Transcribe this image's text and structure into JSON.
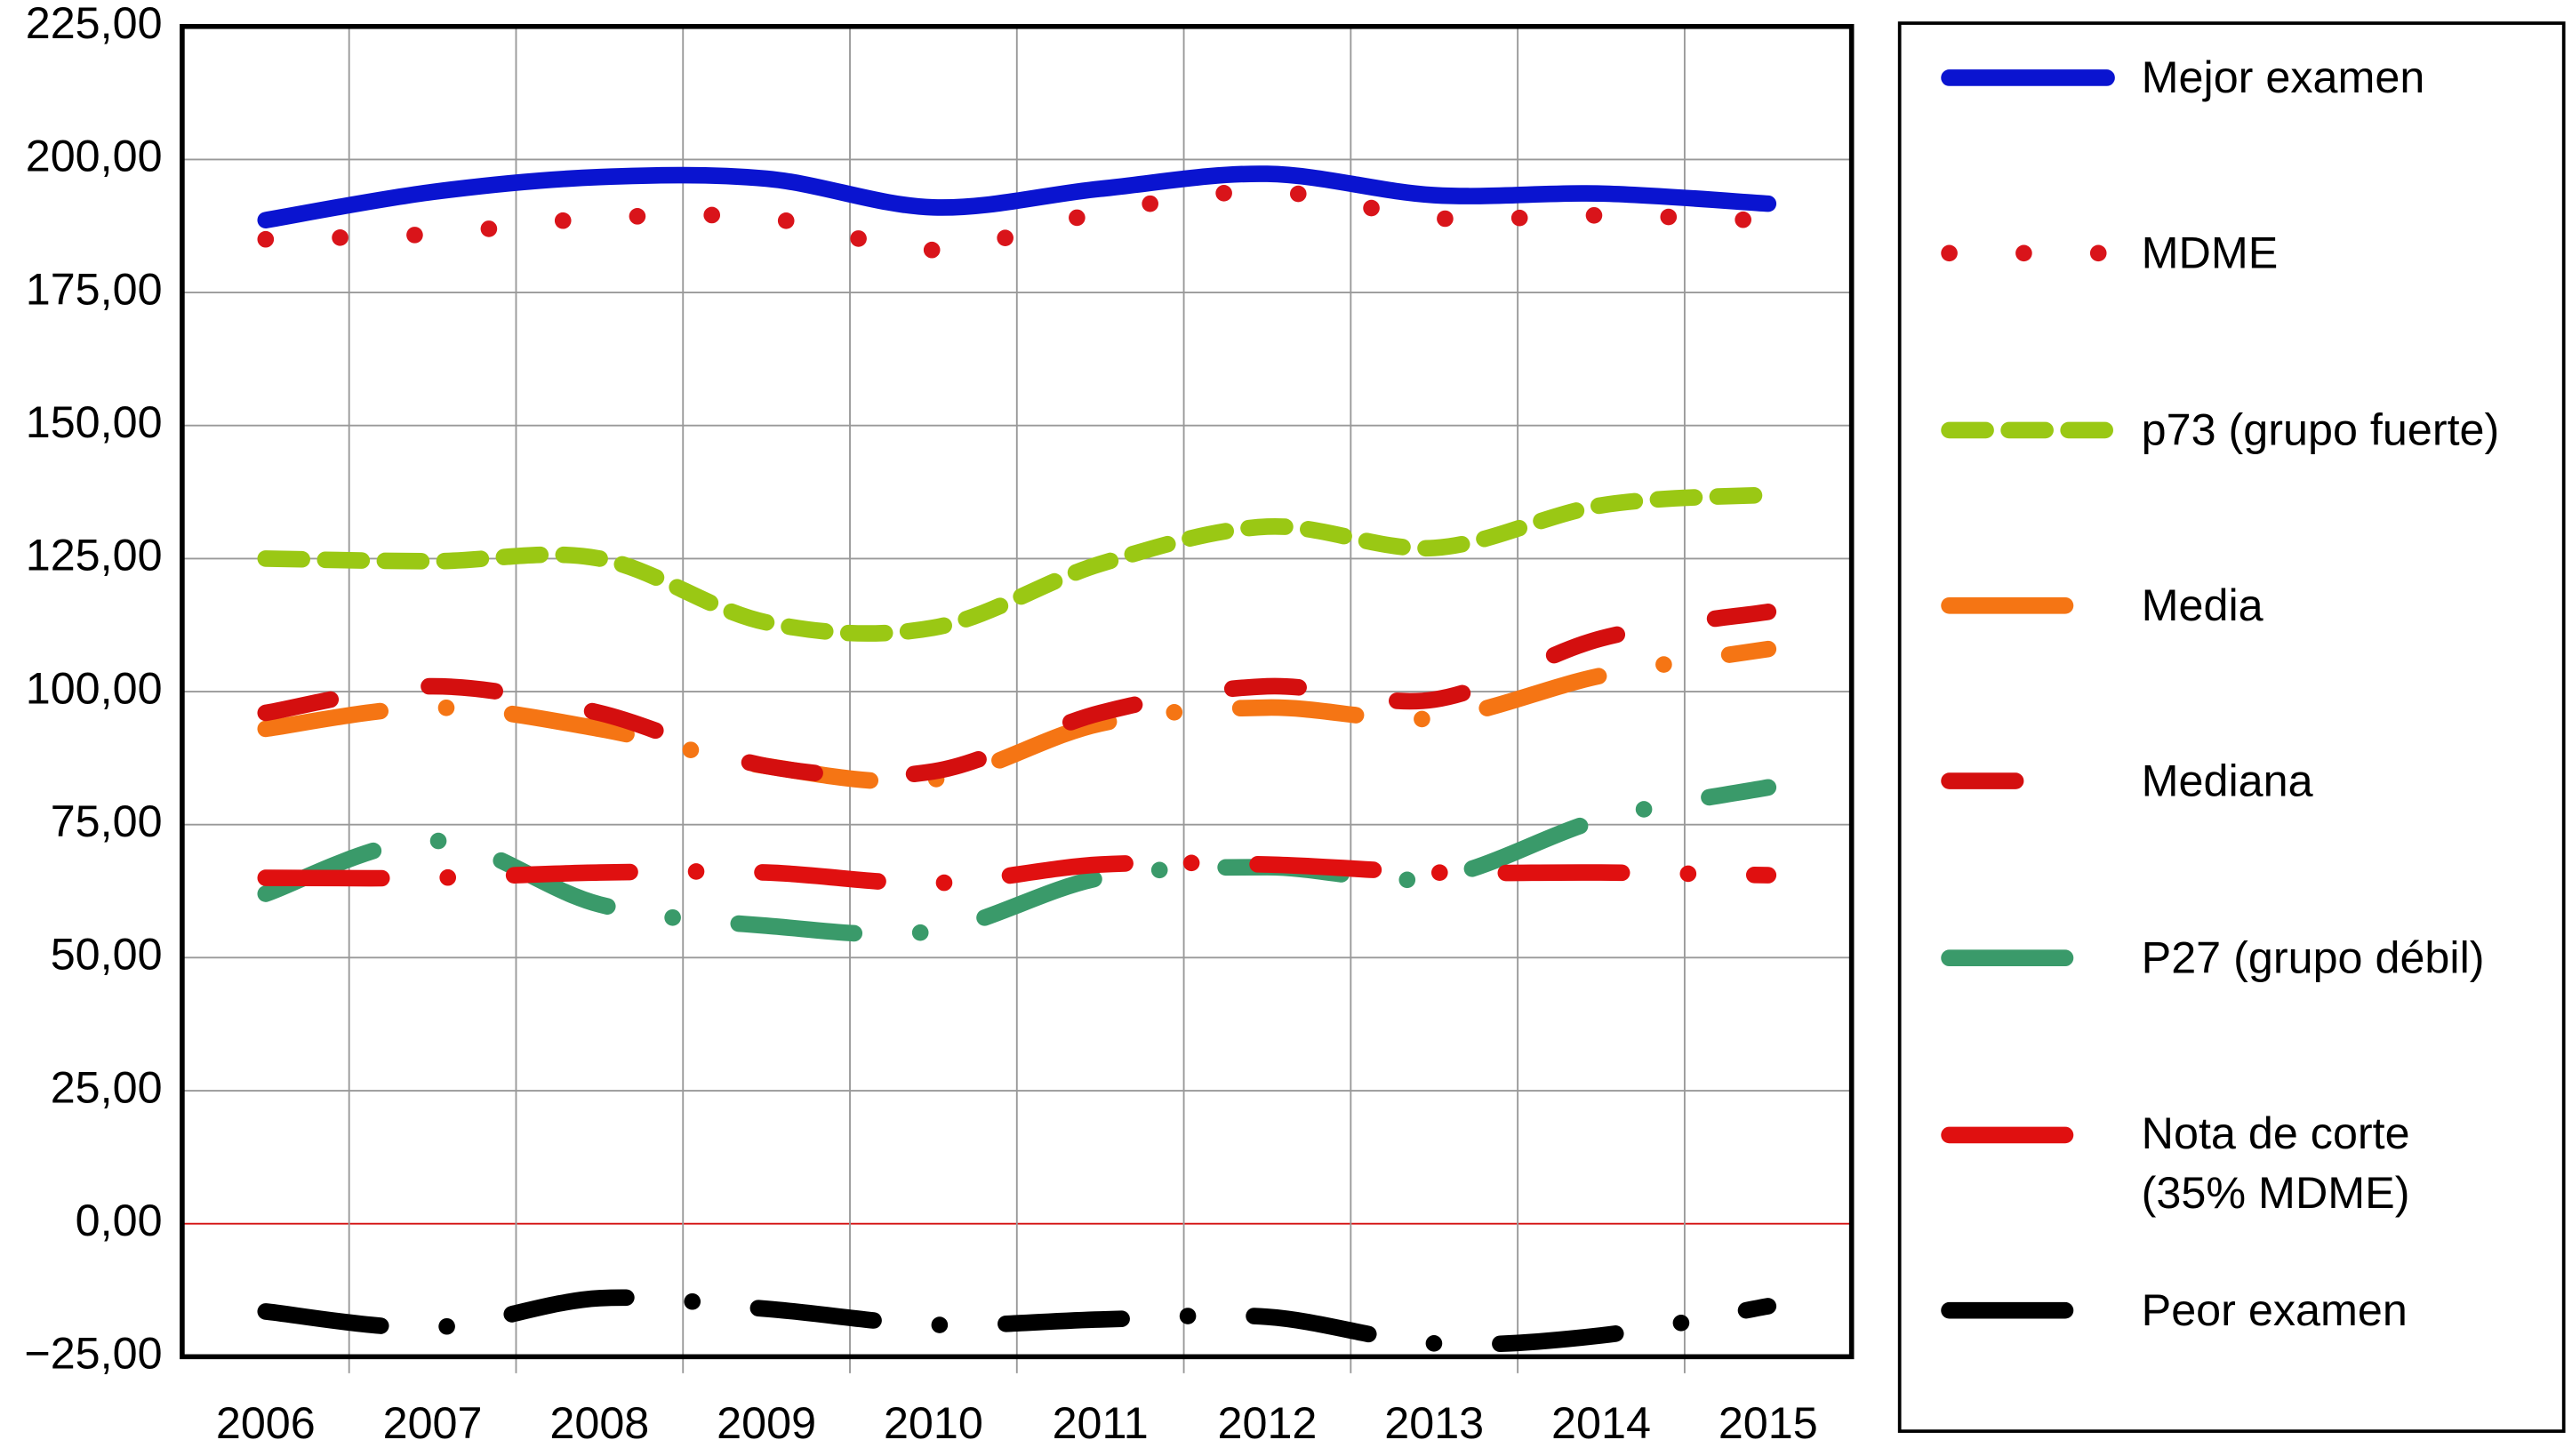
{
  "chart_data": {
    "type": "line",
    "categories": [
      "2006",
      "2007",
      "2008",
      "2009",
      "2010",
      "2011",
      "2012",
      "2013",
      "2014",
      "2015"
    ],
    "series": [
      {
        "name": "Mejor examen",
        "color": "#0a14d0",
        "style": "solid",
        "values": [
          188.6,
          193.9,
          196.7,
          196.4,
          191,
          194.5,
          197.3,
          193.3,
          193.6,
          191.7
        ]
      },
      {
        "name": "MDME",
        "color": "#d9141a",
        "style": "dotted",
        "values": [
          185,
          186,
          189,
          189,
          183,
          190,
          194,
          189,
          189.5,
          188.5
        ]
      },
      {
        "name": "p73 (grupo fuerte)",
        "color": "#9ac814",
        "style": "dashed",
        "values": [
          125,
          124.5,
          125,
          113,
          112,
          124,
          131,
          127,
          135,
          137
        ]
      },
      {
        "name": "Media",
        "color": "#f57514",
        "style": "dashdot",
        "values": [
          93,
          97,
          93,
          86,
          83.5,
          94,
          97,
          95,
          103,
          108
        ]
      },
      {
        "name": "Mediana",
        "color": "#d40f0f",
        "style": "longdash",
        "values": [
          96,
          101,
          96,
          86,
          85,
          96,
          101,
          98.5,
          110,
          115
        ]
      },
      {
        "name": "P27 (grupo débil)",
        "color": "#3a9a6a",
        "style": "dashdot",
        "values": [
          62,
          72,
          60,
          56,
          55,
          65,
          67,
          65,
          76,
          82
        ]
      },
      {
        "name": "Nota de corte (35% MDME)",
        "color": "#e01010",
        "style": "dashdot",
        "values": [
          65,
          65,
          66,
          66,
          64,
          67.5,
          67.5,
          66,
          66,
          65.5
        ]
      },
      {
        "name": "Peor examen",
        "color": "#000000",
        "style": "dashdot",
        "values": [
          -16.5,
          -19.5,
          -14,
          -16,
          -19,
          -18,
          -17.5,
          -22.5,
          -21,
          -15.5
        ]
      }
    ],
    "ylim": [
      -25,
      225
    ],
    "yticks": [
      {
        "value": -25,
        "label": "−25,00"
      },
      {
        "value": 0,
        "label": "0,00"
      },
      {
        "value": 25,
        "label": "25,00"
      },
      {
        "value": 50,
        "label": "50,00"
      },
      {
        "value": 75,
        "label": "75,00"
      },
      {
        "value": 100,
        "label": "100,00"
      },
      {
        "value": 125,
        "label": "125,00"
      },
      {
        "value": 150,
        "label": "150,00"
      },
      {
        "value": 175,
        "label": "175,00"
      },
      {
        "value": 200,
        "label": "200,00"
      },
      {
        "value": 225,
        "label": "225,00"
      }
    ],
    "grid": true
  }
}
